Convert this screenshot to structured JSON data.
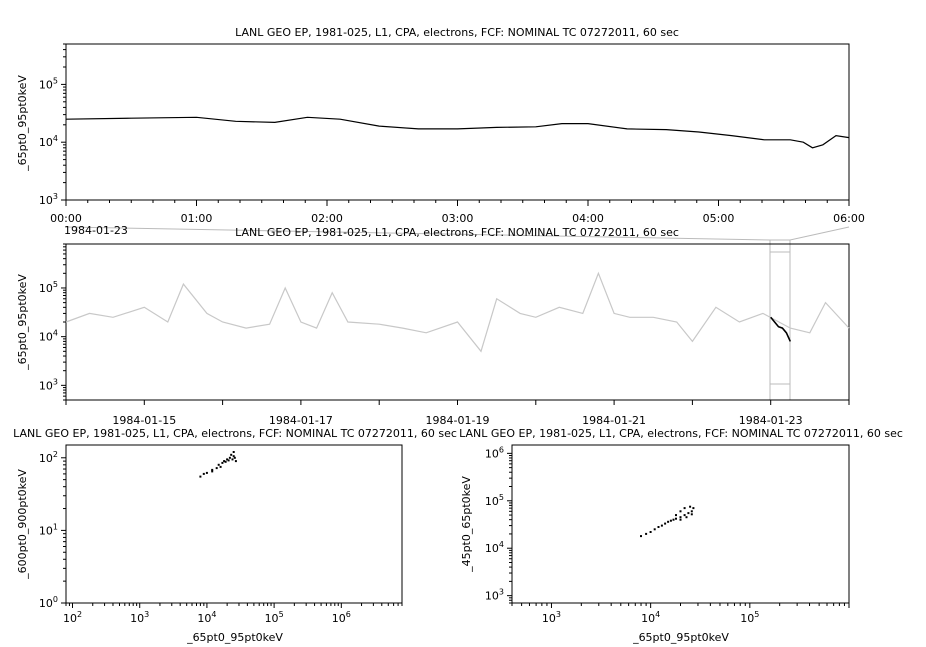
{
  "chart_data": [
    {
      "id": "top",
      "type": "line",
      "title": "LANL GEO EP, 1981-025, L1, CPA, electrons, FCF: NOMINAL TC 07272011, 60 sec",
      "xlabel": "",
      "ylabel": "_65pt0_95pt0keV",
      "ylog": true,
      "ylim": [
        1000,
        500000
      ],
      "xlim_hours": [
        0,
        6
      ],
      "x_tick_labels": [
        "00:00",
        "01:00",
        "02:00",
        "03:00",
        "04:00",
        "05:00",
        "06:00"
      ],
      "x_sub_label": "1984-01-23",
      "y_tick_exponents": [
        3,
        4,
        5
      ],
      "series": [
        {
          "color": "#000000",
          "x": [
            0,
            0.5,
            1.0,
            1.3,
            1.6,
            1.85,
            2.1,
            2.4,
            2.7,
            3.0,
            3.3,
            3.6,
            3.8,
            4.0,
            4.3,
            4.6,
            4.85,
            5.1,
            5.35,
            5.55,
            5.65,
            5.72,
            5.8,
            5.9,
            6.0
          ],
          "values": [
            25000,
            26000,
            27000,
            23000,
            22000,
            27000,
            25000,
            19000,
            17000,
            17000,
            18000,
            18500,
            21000,
            21000,
            17000,
            16500,
            15000,
            13000,
            11000,
            11000,
            10000,
            8000,
            9000,
            13000,
            12000
          ]
        }
      ]
    },
    {
      "id": "middle",
      "type": "line",
      "title": "LANL GEO EP, 1981-025, L1, CPA, electrons, FCF: NOMINAL TC 07272011, 60 sec",
      "xlabel": "",
      "ylabel": "_65pt0_95pt0keV",
      "ylog": true,
      "ylim": [
        500,
        800000
      ],
      "x_tick_labels": [
        "1984-01-15",
        "1984-01-17",
        "1984-01-19",
        "1984-01-21",
        "1984-01-23"
      ],
      "y_tick_exponents": [
        3,
        4,
        5
      ],
      "series": [
        {
          "color": "#c8c8c8",
          "x": [
            "1984-01-14",
            "1984-01-14.3",
            "1984-01-14.6",
            "1984-01-15",
            "1984-01-15.3",
            "1984-01-15.5",
            "1984-01-15.8",
            "1984-01-16",
            "1984-01-16.3",
            "1984-01-16.6",
            "1984-01-16.8",
            "1984-01-17",
            "1984-01-17.2",
            "1984-01-17.4",
            "1984-01-17.6",
            "1984-01-18",
            "1984-01-18.3",
            "1984-01-18.6",
            "1984-01-19",
            "1984-01-19.3",
            "1984-01-19.5",
            "1984-01-19.8",
            "1984-01-20",
            "1984-01-20.3",
            "1984-01-20.6",
            "1984-01-20.8",
            "1984-01-21",
            "1984-01-21.2",
            "1984-01-21.5",
            "1984-01-21.8",
            "1984-01-22",
            "1984-01-22.3",
            "1984-01-22.6",
            "1984-01-22.9",
            "1984-01-23.25",
            "1984-01-23.5",
            "1984-01-23.7",
            "1984-01-24"
          ],
          "values": [
            20000,
            30000,
            25000,
            40000,
            20000,
            120000,
            30000,
            20000,
            15000,
            18000,
            100000,
            20000,
            15000,
            80000,
            20000,
            18000,
            15000,
            12000,
            20000,
            5000,
            60000,
            30000,
            25000,
            40000,
            30000,
            200000,
            30000,
            25000,
            25000,
            20000,
            8000,
            40000,
            20000,
            30000,
            15000,
            12000,
            50000,
            15000
          ]
        },
        {
          "color": "#000000",
          "x": [
            "1984-01-23",
            "1984-01-23.05",
            "1984-01-23.1",
            "1984-01-23.15",
            "1984-01-23.2",
            "1984-01-23.25"
          ],
          "values": [
            25000,
            20000,
            16000,
            15000,
            12000,
            8000
          ]
        }
      ]
    },
    {
      "id": "bottom-left",
      "type": "scatter",
      "title": "LANL GEO EP, 1981-025, L1, CPA, electrons, FCF: NOMINAL TC 07272011, 60 sec",
      "xlabel": "_65pt0_95pt0keV",
      "ylabel": "_600pt0_900pt0keV",
      "xlog": true,
      "ylog": true,
      "xlim": [
        80,
        8000000
      ],
      "ylim": [
        1,
        150
      ],
      "x_tick_exponents": [
        2,
        3,
        4,
        5,
        6
      ],
      "y_tick_exponents": [
        0,
        1,
        2
      ],
      "series": [
        {
          "color": "#000000",
          "x": [
            8000,
            9000,
            10000,
            12000,
            14000,
            15000,
            17000,
            18000,
            20000,
            22000,
            23000,
            24000,
            25000,
            26000,
            27000,
            12000,
            16000,
            19000,
            21000,
            25000
          ],
          "values": [
            55,
            60,
            62,
            68,
            72,
            80,
            85,
            90,
            95,
            100,
            110,
            95,
            105,
            100,
            90,
            65,
            75,
            88,
            92,
            120
          ]
        }
      ]
    },
    {
      "id": "bottom-right",
      "type": "scatter",
      "title": "LANL GEO EP, 1981-025, L1, CPA, electrons, FCF: NOMINAL TC 07272011, 60 sec",
      "xlabel": "_65pt0_95pt0keV",
      "ylabel": "_45pt0_65pt0keV",
      "xlog": true,
      "ylog": true,
      "xlim": [
        400,
        1000000
      ],
      "ylim": [
        700,
        1500000
      ],
      "x_tick_exponents": [
        3,
        4,
        5
      ],
      "y_tick_exponents": [
        3,
        4,
        5,
        6
      ],
      "series": [
        {
          "color": "#000000",
          "x": [
            8000,
            9000,
            10000,
            11000,
            12000,
            13000,
            14000,
            15000,
            16000,
            17000,
            18000,
            20000,
            22000,
            24000,
            26000,
            27000,
            25000,
            22000,
            20000,
            18000,
            20000,
            23000,
            26000
          ],
          "values": [
            18000,
            20000,
            22000,
            25000,
            28000,
            30000,
            33000,
            36000,
            38000,
            40000,
            42000,
            45000,
            50000,
            55000,
            60000,
            70000,
            75000,
            70000,
            60000,
            50000,
            40000,
            45000,
            52000
          ]
        }
      ]
    }
  ]
}
